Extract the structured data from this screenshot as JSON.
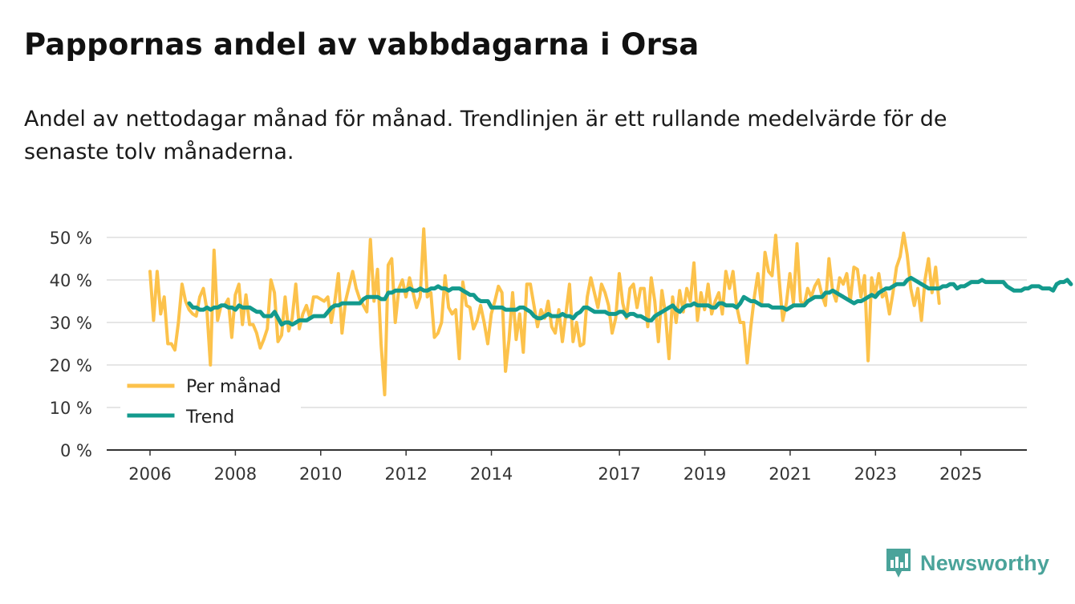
{
  "title": "Pappornas andel av vabbdagarna i Orsa",
  "subtitle": "Andel av nettodagar månad för månad. Trendlinjen är ett rullande medelvärde för de senaste tolv månaderna.",
  "brand": "Newsworthy",
  "colors": {
    "monthly": "#fcc24b",
    "trend": "#139a8d",
    "grid": "#dddddd",
    "axis": "#333333",
    "brand": "#4aa39a"
  },
  "chart_data": {
    "type": "line",
    "title": "Pappornas andel av vabbdagarna i Orsa",
    "xlabel": "",
    "ylabel": "",
    "ylim": [
      0,
      50
    ],
    "xlim": [
      2005.7,
      2026.3
    ],
    "y_ticks": [
      0,
      10,
      20,
      30,
      40,
      50
    ],
    "y_tick_labels": [
      "0 %",
      "10 %",
      "20 %",
      "30 %",
      "40 %",
      "50 %"
    ],
    "x_ticks": [
      2006,
      2008,
      2010,
      2012,
      2014,
      2017,
      2019,
      2021,
      2023,
      2025
    ],
    "x_tick_labels": [
      "2006",
      "2008",
      "2010",
      "2012",
      "2014",
      "2017",
      "2019",
      "2021",
      "2023",
      "2025"
    ],
    "legend": {
      "position": "bottom-left",
      "entries": [
        "Per månad",
        "Trend"
      ]
    },
    "series": [
      {
        "name": "Per månad",
        "x_start": 2006.0,
        "x_step": 0.0833,
        "values": [
          42,
          30.5,
          42,
          32,
          36,
          25,
          25,
          23.5,
          30,
          39,
          35,
          33,
          32,
          31.5,
          36,
          38,
          33,
          20,
          47,
          30.5,
          34,
          34,
          35.5,
          26.5,
          36.5,
          39,
          29.5,
          36.5,
          29.5,
          29.5,
          27.5,
          24,
          26,
          28.5,
          40,
          37,
          25.5,
          27,
          36,
          28,
          31,
          39,
          28.5,
          32,
          34,
          31,
          36,
          36,
          35.5,
          35,
          36,
          30,
          35,
          41.5,
          27.5,
          35,
          38.5,
          42,
          38,
          35.5,
          34,
          32.5,
          49.5,
          35,
          42.5,
          25,
          13,
          43.5,
          45,
          30,
          38,
          40,
          36,
          40.5,
          37,
          33.5,
          36,
          52,
          36,
          37,
          26.5,
          27.5,
          30,
          41,
          33.5,
          32,
          33,
          21.5,
          39.5,
          34,
          33.5,
          28.5,
          30.5,
          34,
          30,
          25,
          32,
          35,
          38.5,
          37,
          18.5,
          26,
          37,
          26,
          32,
          23,
          39,
          39,
          34,
          29,
          33,
          31,
          35,
          29,
          27.5,
          33,
          25.5,
          32,
          39,
          25.5,
          30,
          24.5,
          25,
          36,
          40.5,
          37,
          33.5,
          39,
          37,
          34,
          27.5,
          31,
          41.5,
          34.5,
          31,
          38,
          39,
          33.5,
          38,
          38,
          29,
          40.5,
          35,
          25.5,
          37.5,
          32,
          21.5,
          36,
          30,
          37.5,
          32.5,
          38,
          35,
          44,
          30.5,
          37,
          33,
          39,
          32,
          35,
          37,
          32,
          42,
          38,
          42,
          34,
          30,
          30,
          20.5,
          29,
          36,
          41.5,
          34,
          46.5,
          42,
          41,
          50.5,
          40,
          30.5,
          34.5,
          41.5,
          34.5,
          48.5,
          35,
          34,
          38,
          36,
          38.5,
          40,
          36.5,
          34,
          45,
          37.5,
          35,
          40.5,
          39,
          41.5,
          35,
          43,
          42.5,
          36,
          41,
          21,
          40.5,
          36.5,
          41.5,
          36,
          37,
          32,
          37,
          43,
          45.5,
          51,
          46,
          38,
          34,
          38,
          30.5,
          40,
          45,
          37,
          43,
          34.5
        ]
      },
      {
        "name": "Trend",
        "x_start": 2006.92,
        "x_step": 0.0833,
        "values": [
          34.5,
          33.5,
          33.5,
          33,
          33,
          33.5,
          33,
          33.5,
          33.5,
          34,
          34,
          33.5,
          33.5,
          33,
          34,
          33.5,
          33.5,
          33.5,
          33,
          32.5,
          32.5,
          31.5,
          31.5,
          31.5,
          32.5,
          31,
          29.5,
          30,
          30,
          29.5,
          30,
          30.5,
          30.5,
          30.5,
          31,
          31.5,
          31.5,
          31.5,
          31.5,
          32.5,
          33.5,
          34,
          34,
          34.5,
          34.5,
          34.5,
          34.5,
          34.5,
          34.5,
          35.5,
          36,
          36,
          36,
          36,
          35.5,
          35.5,
          37,
          37,
          37.5,
          37.5,
          37.5,
          37.5,
          38,
          37.5,
          37.5,
          38,
          37.5,
          37.5,
          38,
          38,
          38.5,
          38,
          38,
          37.5,
          38,
          38,
          38,
          37.5,
          37,
          36.5,
          36.5,
          35.5,
          35,
          35,
          35,
          33.5,
          33.5,
          33.5,
          33.5,
          33,
          33,
          33,
          33,
          33.5,
          33.5,
          33,
          32.5,
          31.5,
          31,
          31,
          31.5,
          32,
          31.5,
          31.5,
          31.5,
          32,
          31.5,
          31.5,
          31,
          32,
          32.5,
          33.5,
          33.5,
          33,
          32.5,
          32.5,
          32.5,
          32.5,
          32,
          32,
          32,
          32.5,
          32.5,
          31.5,
          32,
          32,
          31.5,
          31.5,
          31,
          30.5,
          30.5,
          31.5,
          32,
          32.5,
          33,
          33.5,
          34,
          33,
          32.5,
          33.5,
          34,
          34,
          34.5,
          34,
          34,
          34,
          34,
          33.5,
          33.5,
          34.5,
          34.5,
          34,
          34,
          34,
          33.5,
          34.5,
          36,
          35.5,
          35,
          35,
          34.5,
          34,
          34,
          34,
          33.5,
          33.5,
          33.5,
          33.5,
          33,
          33.5,
          34,
          34,
          34,
          34,
          35,
          35.5,
          36,
          36,
          36,
          37,
          37,
          37.5,
          37,
          36.5,
          36,
          35.5,
          35,
          34.5,
          35,
          35,
          35.5,
          36,
          36.5,
          36,
          37,
          37.5,
          38,
          38,
          38.5,
          39,
          39,
          39,
          40,
          40.5,
          40,
          39.5,
          39,
          38.5,
          38,
          38,
          38,
          38,
          38.5,
          38.5,
          39,
          39,
          38,
          38.5,
          38.5,
          39,
          39.5,
          39.5,
          39.5,
          40,
          39.5,
          39.5,
          39.5,
          39.5,
          39.5,
          39.5,
          38.5,
          38,
          37.5,
          37.5,
          37.5,
          38,
          38,
          38.5,
          38.5,
          38.5,
          38,
          38,
          38,
          37.5,
          39,
          39.5,
          39.5,
          40,
          39
        ]
      }
    ]
  }
}
